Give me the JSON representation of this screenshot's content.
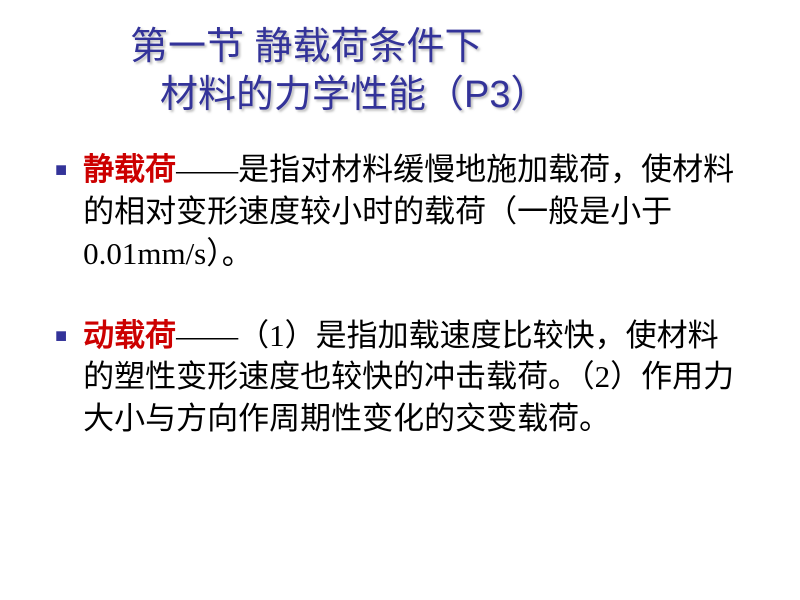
{
  "title": {
    "line1": "第一节   静载荷条件下",
    "line2": "材料的力学性能（P3）",
    "color": "#333399",
    "fontsize": 38,
    "shadow_color": "#808080"
  },
  "bullets": [
    {
      "term": "静载荷",
      "dash": "——",
      "text": "是指对材料缓慢地施加载荷，使材料的相对变形速度较小时的载荷（一般是小于0.01mm/s）。"
    },
    {
      "term": "动载荷",
      "dash": "——",
      "text": "（1）是指加载速度比较快，使材料的塑性变形速度也较快的冲击载荷。（2）作用力大小与方向作周期性变化的交变载荷。"
    }
  ],
  "styling": {
    "background_color": "#ffffff",
    "body_fontsize": 31,
    "term_color": "#cc0000",
    "text_color": "#000000",
    "bullet_marker_color": "#333399",
    "bullet_marker": "■",
    "font_family_title": "SimHei",
    "font_family_body": "SimSun"
  }
}
